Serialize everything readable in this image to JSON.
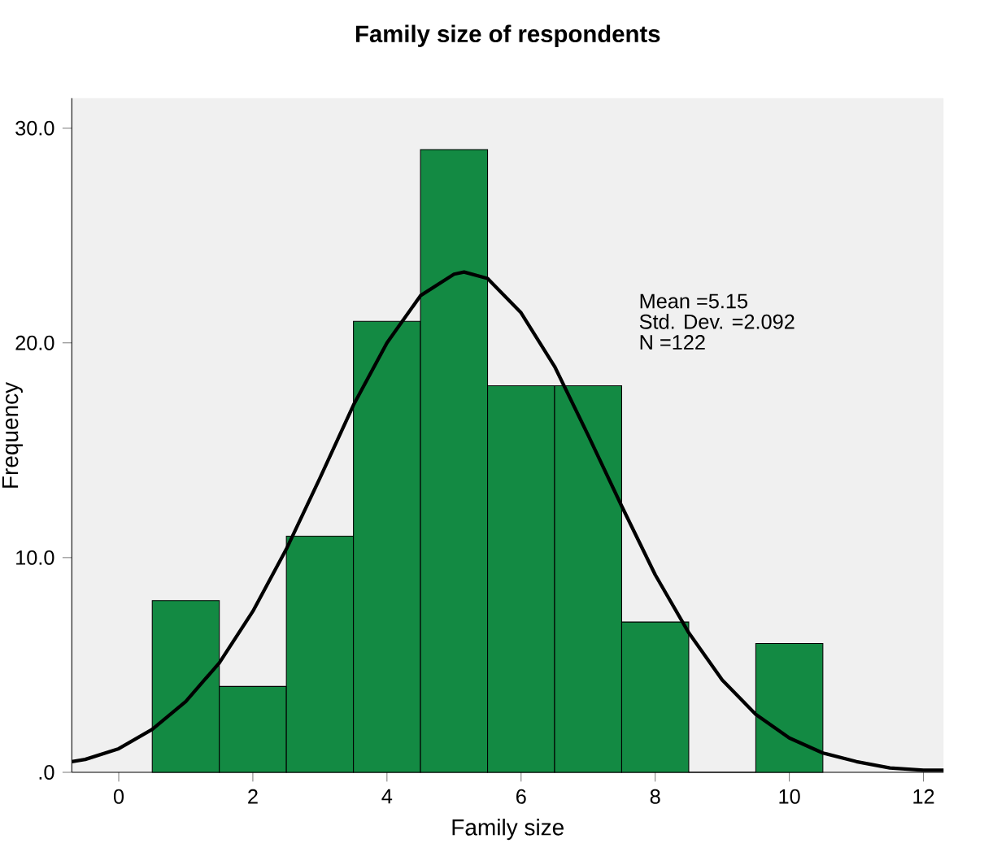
{
  "chart_data": {
    "type": "histogram",
    "title": "Family size of respondents",
    "xlabel": "Family size",
    "ylabel": "Frequency",
    "bins": [
      0.5,
      1.5,
      2.5,
      3.5,
      4.5,
      5.5,
      6.5,
      7.5,
      8.5,
      9.5,
      10.5
    ],
    "values": [
      8,
      4,
      11,
      21,
      29,
      18,
      18,
      7,
      0,
      6
    ],
    "color": "#138a43",
    "series": [
      {
        "type": "line",
        "color": "#000000",
        "x": [
          -0.7,
          -0.5,
          0,
          0.5,
          1,
          1.5,
          2,
          2.5,
          3,
          3.5,
          4,
          4.5,
          5,
          5.15,
          5.5,
          6,
          6.5,
          7,
          7.5,
          8,
          8.5,
          9,
          9.5,
          10,
          10.5,
          11,
          11.5,
          12,
          12.3
        ],
        "values": [
          0.5,
          0.6,
          1.1,
          2.0,
          3.3,
          5.1,
          7.5,
          10.4,
          13.7,
          17.1,
          20.0,
          22.2,
          23.2,
          23.3,
          23.0,
          21.4,
          18.9,
          15.7,
          12.4,
          9.2,
          6.5,
          4.3,
          2.7,
          1.6,
          0.9,
          0.5,
          0.2,
          0.1,
          0.1
        ]
      }
    ],
    "xlim": [
      -0.7,
      12.3
    ],
    "ylim": [
      0,
      31.4
    ],
    "xticks": [
      0,
      2,
      4,
      6,
      8,
      10,
      12
    ],
    "yticks": [
      {
        "value": 0,
        "label": ".0"
      },
      {
        "value": 10,
        "label": "10.0"
      },
      {
        "value": 20,
        "label": "20.0"
      },
      {
        "value": 30,
        "label": "30.0"
      }
    ],
    "annotations": [
      "Mean =5.15",
      "Std. Dev. =2.092",
      "N =122"
    ],
    "grid": false
  }
}
